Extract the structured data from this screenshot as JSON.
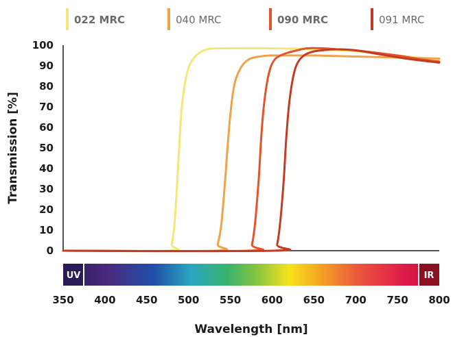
{
  "chart_data": {
    "type": "line",
    "xlabel": "Wavelength [nm]",
    "ylabel": "Transmission [%]",
    "xlim": [
      350,
      800
    ],
    "ylim": [
      0,
      100
    ],
    "x_ticks": [
      350,
      400,
      450,
      500,
      550,
      600,
      650,
      700,
      750,
      800
    ],
    "y_ticks": [
      0,
      10,
      20,
      30,
      40,
      50,
      60,
      70,
      80,
      90,
      100
    ],
    "grid": false,
    "legend_position": "top",
    "spectrum_bar": {
      "left_label": "UV",
      "right_label": "IR"
    },
    "series": [
      {
        "name": "022 MRC",
        "color": "#f3e77a",
        "bold": true,
        "x": [
          350,
          478,
          480,
          483,
          486,
          489,
          492,
          496,
          500,
          505,
          512,
          522,
          540,
          600,
          650,
          700,
          750,
          800
        ],
        "y": [
          0,
          0,
          3,
          12,
          30,
          52,
          70,
          82,
          89,
          93,
          96,
          98,
          98.5,
          98.5,
          98,
          97,
          95,
          93
        ]
      },
      {
        "name": "040 MRC",
        "color": "#f0a24a",
        "bold": false,
        "x": [
          350,
          532,
          535,
          539,
          543,
          547,
          551,
          555,
          560,
          566,
          574,
          585,
          600,
          650,
          700,
          750,
          800
        ],
        "y": [
          0,
          0,
          3,
          12,
          30,
          52,
          70,
          81,
          87,
          91,
          93.5,
          94.5,
          95,
          95,
          94.5,
          94,
          93.5
        ]
      },
      {
        "name": "090 MRC",
        "color": "#e5532a",
        "bold": true,
        "x": [
          350,
          572,
          576,
          580,
          584,
          587,
          590,
          594,
          598,
          603,
          610,
          620,
          630,
          642,
          660,
          680,
          700,
          750,
          780,
          800
        ],
        "y": [
          0,
          0,
          3,
          15,
          35,
          55,
          70,
          82,
          89,
          93,
          95,
          96.5,
          97.5,
          98.5,
          98.5,
          98,
          97.5,
          95,
          93,
          92
        ]
      },
      {
        "name": "091 MRC",
        "color": "#c23b22",
        "bold": false,
        "x": [
          350,
          602,
          606,
          610,
          614,
          617,
          620,
          624,
          628,
          633,
          640,
          650,
          660,
          675,
          700,
          730,
          760,
          800
        ],
        "y": [
          0,
          0,
          3,
          15,
          35,
          55,
          70,
          82,
          89,
          93,
          95.5,
          97,
          97.5,
          98,
          97.5,
          95.5,
          93.5,
          91.5
        ]
      }
    ]
  }
}
